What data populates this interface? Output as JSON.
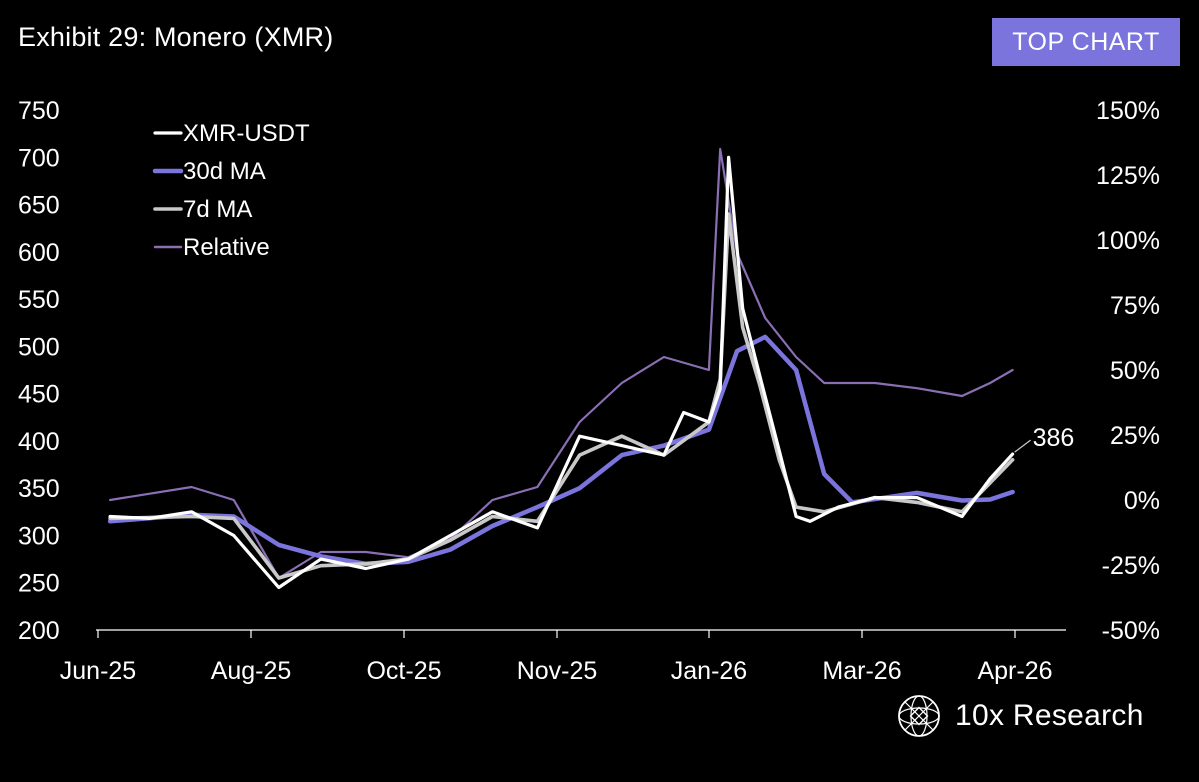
{
  "header": {
    "title": "Exhibit 29: Monero (XMR)",
    "badge": "TOP CHART"
  },
  "brand": {
    "name": "10x Research",
    "logo_icon": "globe-grid-icon"
  },
  "colors": {
    "background": "#000000",
    "xmr": "#ffffff",
    "ma30": "#7b74dc",
    "ma7": "#c8c8c8",
    "relative": "#8a6fb4",
    "badge": "#7b74dc"
  },
  "chart_data": {
    "type": "line",
    "title": "Exhibit 29: Monero (XMR)",
    "x_ticks": [
      "Jun-25",
      "Aug-25",
      "Oct-25",
      "Nov-25",
      "Jan-26",
      "Mar-26",
      "Apr-26"
    ],
    "y_left": {
      "ticks": [
        "750",
        "700",
        "650",
        "600",
        "550",
        "500",
        "450",
        "400",
        "350",
        "300",
        "250",
        "200"
      ],
      "ylim": [
        200,
        750
      ]
    },
    "y_right": {
      "ticks": [
        "150%",
        "125%",
        "100%",
        "75%",
        "50%",
        "25%",
        "0%",
        "-25%",
        "-50%"
      ],
      "ylim": [
        -50,
        150
      ]
    },
    "last_value_label": "386",
    "legend": {
      "placement": "top-left"
    },
    "series": [
      {
        "name": "XMR-USDT",
        "axis": "left",
        "x": [
          "2025-06-01",
          "2025-06-15",
          "2025-06-30",
          "2025-07-15",
          "2025-07-31",
          "2025-08-15",
          "2025-08-31",
          "2025-09-15",
          "2025-09-30",
          "2025-10-15",
          "2025-10-31",
          "2025-11-15",
          "2025-11-30",
          "2025-12-15",
          "2025-12-22",
          "2025-12-31",
          "2026-01-04",
          "2026-01-07",
          "2026-01-12",
          "2026-01-18",
          "2026-01-25",
          "2026-01-31",
          "2026-02-05",
          "2026-02-15",
          "2026-02-28",
          "2026-03-15",
          "2026-03-31",
          "2026-04-10",
          "2026-04-18"
        ],
        "values": [
          320,
          318,
          325,
          300,
          245,
          275,
          265,
          275,
          300,
          325,
          308,
          405,
          395,
          385,
          430,
          420,
          455,
          700,
          540,
          470,
          390,
          320,
          315,
          330,
          340,
          340,
          320,
          360,
          386
        ]
      },
      {
        "name": "30d MA",
        "axis": "left",
        "x": [
          "2025-06-01",
          "2025-06-30",
          "2025-07-15",
          "2025-07-31",
          "2025-08-15",
          "2025-08-31",
          "2025-09-15",
          "2025-09-30",
          "2025-10-15",
          "2025-10-31",
          "2025-11-15",
          "2025-11-30",
          "2025-12-15",
          "2025-12-31",
          "2026-01-10",
          "2026-01-20",
          "2026-01-31",
          "2026-02-10",
          "2026-02-20",
          "2026-03-15",
          "2026-03-31",
          "2026-04-10",
          "2026-04-18"
        ],
        "values": [
          315,
          322,
          320,
          290,
          278,
          270,
          272,
          285,
          310,
          330,
          350,
          385,
          395,
          412,
          495,
          510,
          475,
          365,
          335,
          345,
          337,
          338,
          346
        ]
      },
      {
        "name": "7d MA",
        "axis": "left",
        "x": [
          "2025-06-01",
          "2025-06-30",
          "2025-07-15",
          "2025-07-31",
          "2025-08-15",
          "2025-08-31",
          "2025-09-15",
          "2025-09-30",
          "2025-10-15",
          "2025-10-31",
          "2025-11-15",
          "2025-11-30",
          "2025-12-15",
          "2025-12-31",
          "2026-01-04",
          "2026-01-07",
          "2026-01-12",
          "2026-01-18",
          "2026-01-25",
          "2026-01-31",
          "2026-02-10",
          "2026-02-28",
          "2026-03-15",
          "2026-03-31",
          "2026-04-18"
        ],
        "values": [
          318,
          320,
          318,
          255,
          268,
          270,
          275,
          295,
          320,
          315,
          385,
          405,
          385,
          420,
          465,
          640,
          520,
          460,
          380,
          330,
          325,
          340,
          335,
          325,
          380
        ]
      },
      {
        "name": "Relative",
        "axis": "right",
        "x": [
          "2025-06-01",
          "2025-06-30",
          "2025-07-15",
          "2025-07-31",
          "2025-08-15",
          "2025-08-31",
          "2025-09-15",
          "2025-09-30",
          "2025-10-15",
          "2025-10-31",
          "2025-11-15",
          "2025-11-30",
          "2025-12-15",
          "2025-12-31",
          "2026-01-04",
          "2026-01-10",
          "2026-01-20",
          "2026-01-31",
          "2026-02-10",
          "2026-02-28",
          "2026-03-15",
          "2026-03-31",
          "2026-04-10",
          "2026-04-18"
        ],
        "values": [
          0,
          5,
          0,
          -30,
          -20,
          -20,
          -22,
          -15,
          0,
          5,
          30,
          45,
          55,
          50,
          135,
          95,
          70,
          55,
          45,
          45,
          43,
          40,
          45,
          50
        ]
      }
    ]
  }
}
